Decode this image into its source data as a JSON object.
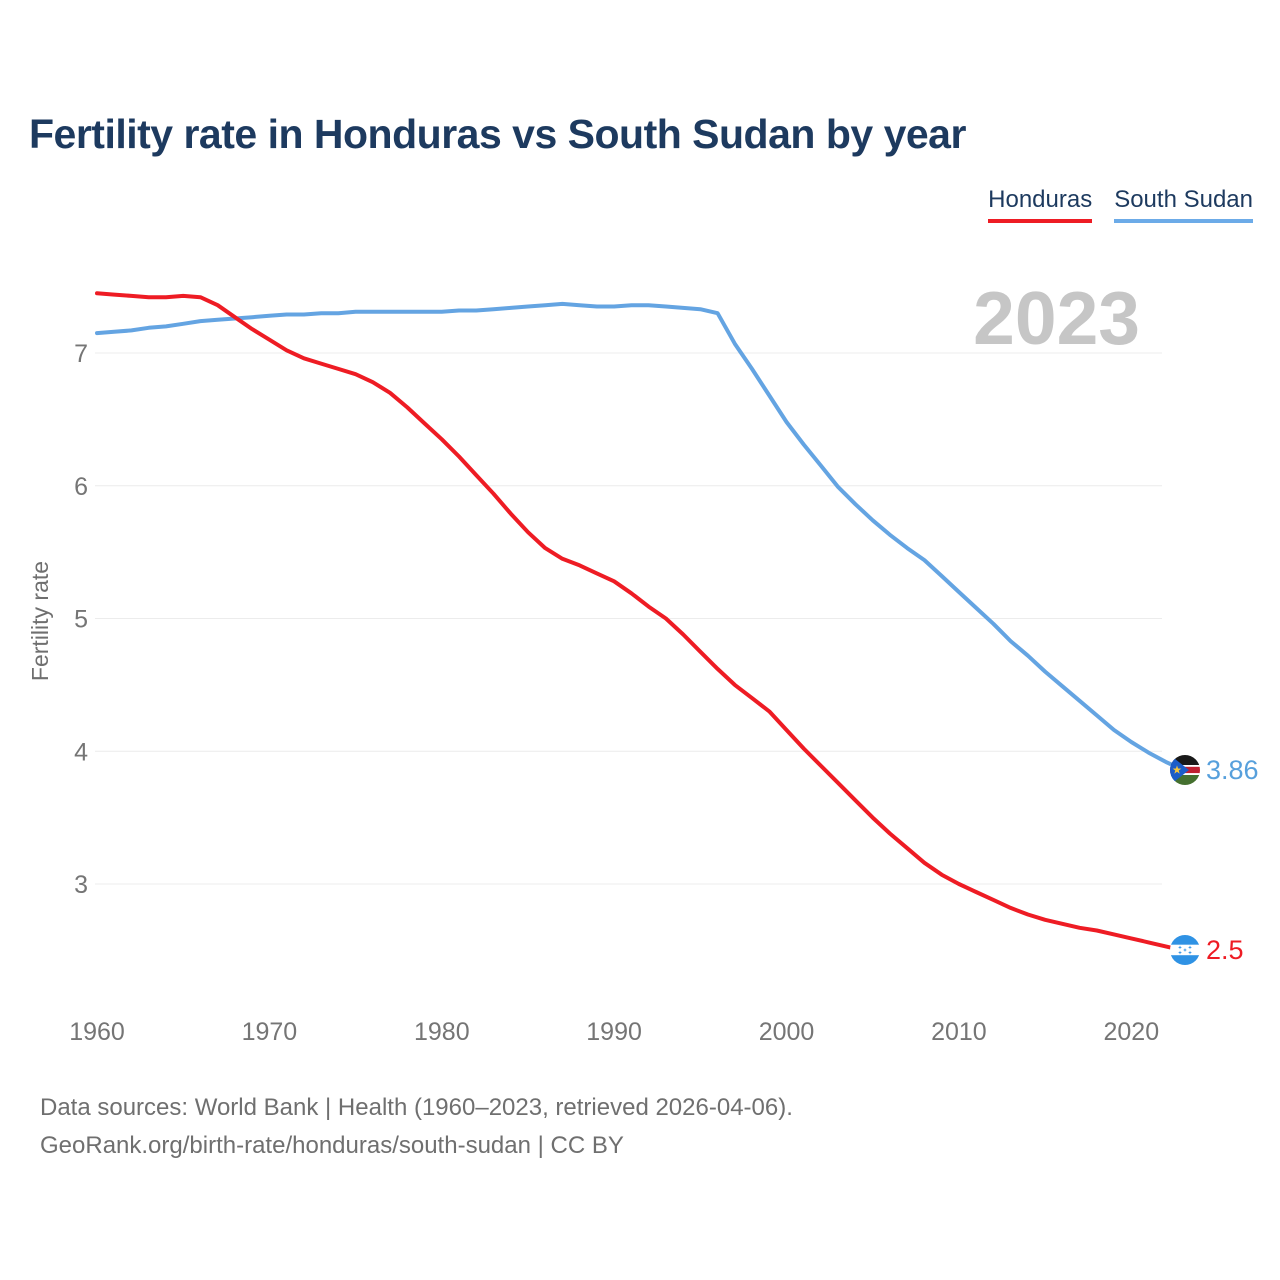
{
  "page": {
    "background": "#ffffff"
  },
  "header": {
    "title": "Fertility rate in Honduras vs South Sudan by year"
  },
  "legend": [
    {
      "label": "Honduras",
      "color": "#ee1c24"
    },
    {
      "label": "South Sudan",
      "color": "#6cabe8"
    }
  ],
  "watermark_year": "2023",
  "chart_data": {
    "type": "line",
    "title": "Fertility rate in Honduras vs South Sudan by year",
    "xlabel": "",
    "ylabel": "Fertility rate",
    "xlim": [
      1960,
      2023
    ],
    "ylim": [
      2.1,
      7.6
    ],
    "xticks": [
      1960,
      1970,
      1980,
      1990,
      2000,
      2010,
      2020
    ],
    "yticks": [
      3,
      4,
      5,
      6,
      7
    ],
    "grid": "horizontal-light",
    "legend_position": "top-right",
    "x": [
      1960,
      1961,
      1962,
      1963,
      1964,
      1965,
      1966,
      1967,
      1968,
      1969,
      1970,
      1971,
      1972,
      1973,
      1974,
      1975,
      1976,
      1977,
      1978,
      1979,
      1980,
      1981,
      1982,
      1983,
      1984,
      1985,
      1986,
      1987,
      1988,
      1989,
      1990,
      1991,
      1992,
      1993,
      1994,
      1995,
      1996,
      1997,
      1998,
      1999,
      2000,
      2001,
      2002,
      2003,
      2004,
      2005,
      2006,
      2007,
      2008,
      2009,
      2010,
      2011,
      2012,
      2013,
      2014,
      2015,
      2016,
      2017,
      2018,
      2019,
      2020,
      2021,
      2022,
      2023
    ],
    "series": [
      {
        "name": "Honduras",
        "color": "#ee1c24",
        "end_label": "2.5",
        "end_value": 2.5,
        "values": [
          7.45,
          7.44,
          7.43,
          7.42,
          7.42,
          7.43,
          7.42,
          7.36,
          7.27,
          7.18,
          7.1,
          7.02,
          6.96,
          6.92,
          6.88,
          6.84,
          6.78,
          6.7,
          6.59,
          6.47,
          6.35,
          6.22,
          6.08,
          5.94,
          5.79,
          5.65,
          5.53,
          5.45,
          5.4,
          5.34,
          5.28,
          5.19,
          5.09,
          5.0,
          4.88,
          4.75,
          4.62,
          4.5,
          4.4,
          4.3,
          4.16,
          4.02,
          3.89,
          3.76,
          3.63,
          3.5,
          3.38,
          3.27,
          3.16,
          3.07,
          3.0,
          2.94,
          2.88,
          2.82,
          2.77,
          2.73,
          2.7,
          2.67,
          2.65,
          2.62,
          2.59,
          2.56,
          2.53,
          2.5
        ]
      },
      {
        "name": "South Sudan",
        "color": "#64a4e2",
        "end_label": "3.86",
        "end_value": 3.86,
        "values": [
          7.15,
          7.16,
          7.17,
          7.19,
          7.2,
          7.22,
          7.24,
          7.25,
          7.26,
          7.27,
          7.28,
          7.29,
          7.29,
          7.3,
          7.3,
          7.31,
          7.31,
          7.31,
          7.31,
          7.31,
          7.31,
          7.32,
          7.32,
          7.33,
          7.34,
          7.35,
          7.36,
          7.37,
          7.36,
          7.35,
          7.35,
          7.36,
          7.36,
          7.35,
          7.34,
          7.33,
          7.3,
          7.07,
          6.88,
          6.68,
          6.48,
          6.31,
          6.15,
          5.99,
          5.86,
          5.74,
          5.63,
          5.53,
          5.44,
          5.32,
          5.2,
          5.08,
          4.96,
          4.83,
          4.72,
          4.6,
          4.49,
          4.38,
          4.27,
          4.16,
          4.07,
          3.99,
          3.92,
          3.86
        ]
      }
    ]
  },
  "footer": {
    "line1": "Data sources: World Bank | Health (1960–2023, retrieved 2026-04-06).",
    "line2": "GeoRank.org/birth-rate/honduras/south-sudan | CC BY"
  }
}
